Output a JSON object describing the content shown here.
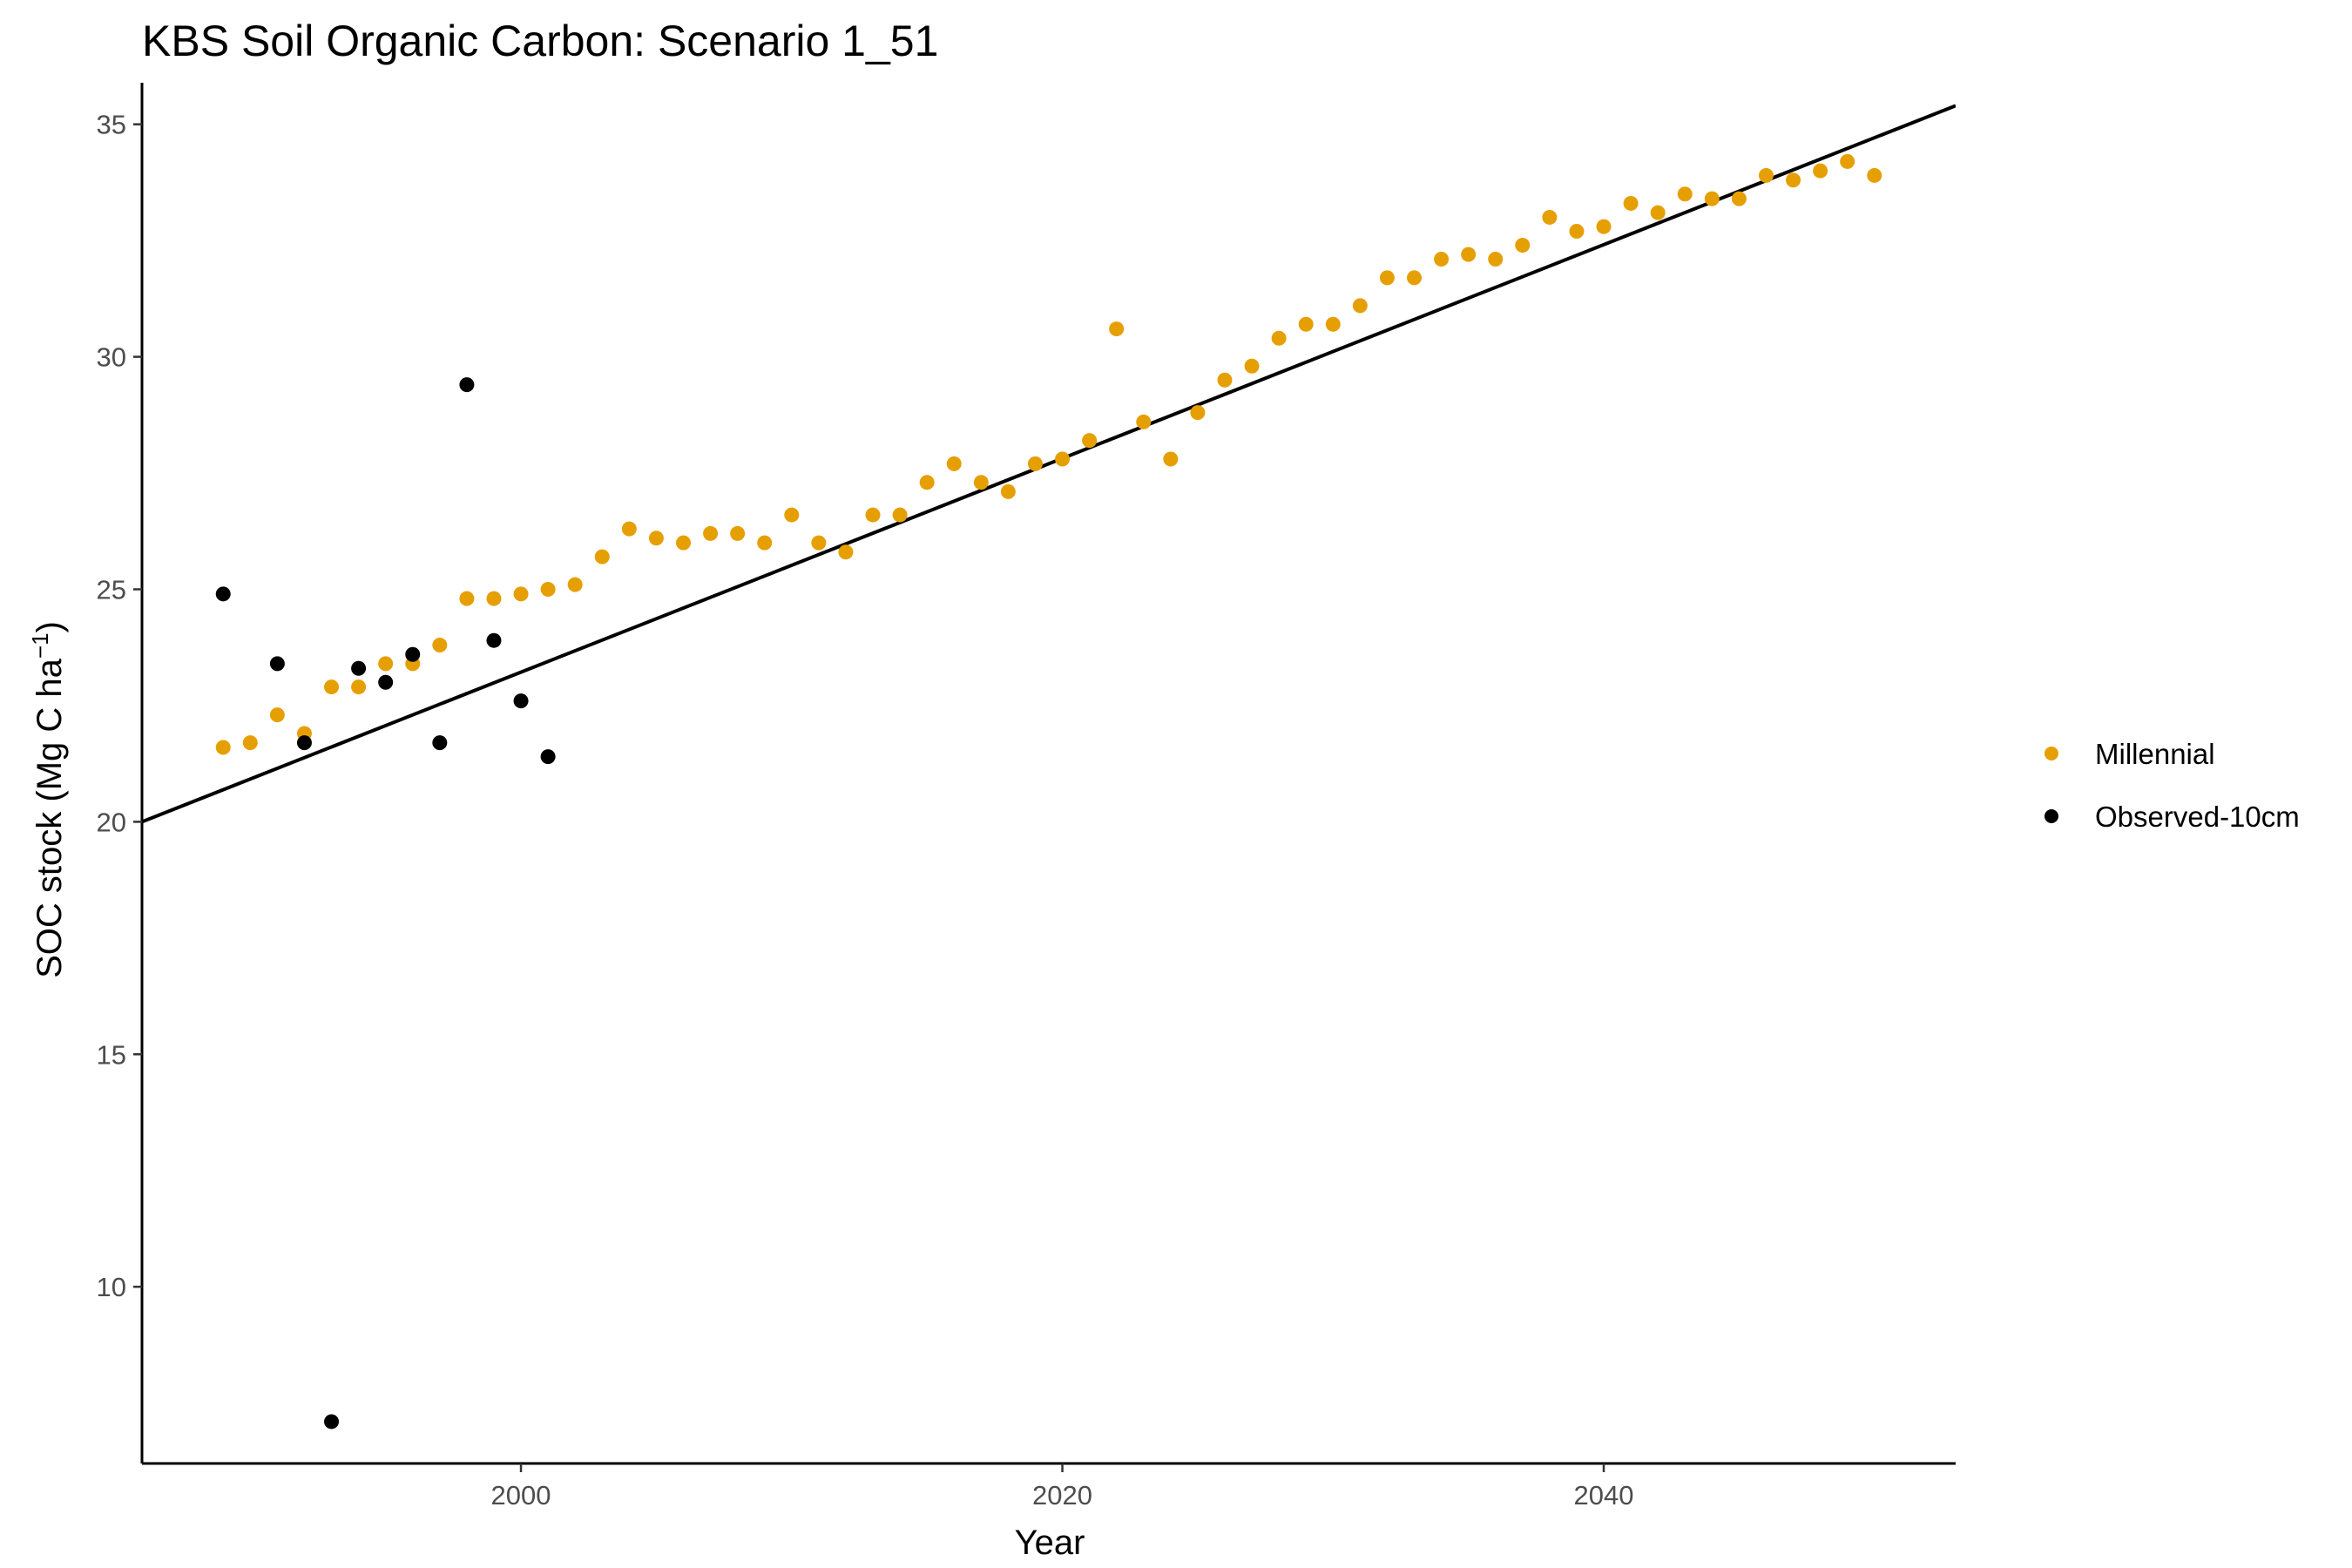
{
  "chart_data": {
    "type": "scatter",
    "title": "KBS Soil Organic Carbon: Scenario  1_51",
    "xlabel": "Year",
    "ylabel": {
      "prefix": "SOC stock (Mg C ha",
      "superscript": "−1",
      "suffix": ")"
    },
    "xlim": [
      1986,
      2053
    ],
    "ylim": [
      6.2,
      35.8
    ],
    "x_ticks": [
      2000,
      2020,
      2040
    ],
    "y_ticks": [
      10,
      15,
      20,
      25,
      30,
      35
    ],
    "grid": false,
    "legend_position": "right",
    "series": [
      {
        "name": "Millennial",
        "color": "#E69F00",
        "x": [
          1989,
          1990,
          1991,
          1992,
          1993,
          1994,
          1995,
          1996,
          1997,
          1998,
          1999,
          2000,
          2001,
          2002,
          2003,
          2004,
          2005,
          2006,
          2007,
          2008,
          2009,
          2010,
          2011,
          2012,
          2013,
          2014,
          2015,
          2016,
          2017,
          2018,
          2019,
          2020,
          2021,
          2022,
          2023,
          2024,
          2025,
          2026,
          2027,
          2028,
          2029,
          2030,
          2031,
          2032,
          2033,
          2034,
          2035,
          2036,
          2037,
          2038,
          2039,
          2040,
          2041,
          2042,
          2043,
          2044,
          2045,
          2046,
          2047,
          2048,
          2049,
          2050
        ],
        "y": [
          21.6,
          21.7,
          22.3,
          21.9,
          22.9,
          22.9,
          23.4,
          23.4,
          23.8,
          24.8,
          24.8,
          24.9,
          25.0,
          25.1,
          25.7,
          26.3,
          26.1,
          26.0,
          26.2,
          26.2,
          26.0,
          26.6,
          26.0,
          25.8,
          26.6,
          26.6,
          27.3,
          27.7,
          27.3,
          27.1,
          27.7,
          27.8,
          28.2,
          30.6,
          28.6,
          27.8,
          28.8,
          29.5,
          29.8,
          30.4,
          30.7,
          30.7,
          31.1,
          31.7,
          31.7,
          32.1,
          32.2,
          32.1,
          32.4,
          33.0,
          32.7,
          32.8,
          33.3,
          33.1,
          33.5,
          33.4,
          33.4,
          33.9,
          33.8,
          34.0,
          34.2,
          33.9
        ]
      },
      {
        "name": "Observed-10cm",
        "color": "#000000",
        "x": [
          1989,
          1991,
          1992,
          1993,
          1994,
          1995,
          1996,
          1997,
          1998,
          1999,
          2000,
          2001
        ],
        "y": [
          24.9,
          23.4,
          21.7,
          7.1,
          23.3,
          23.0,
          23.6,
          21.7,
          29.4,
          23.9,
          22.6,
          21.4
        ]
      }
    ],
    "trend_line": {
      "color": "#000000",
      "x": [
        1986,
        2053
      ],
      "y": [
        20.0,
        35.4
      ]
    }
  }
}
